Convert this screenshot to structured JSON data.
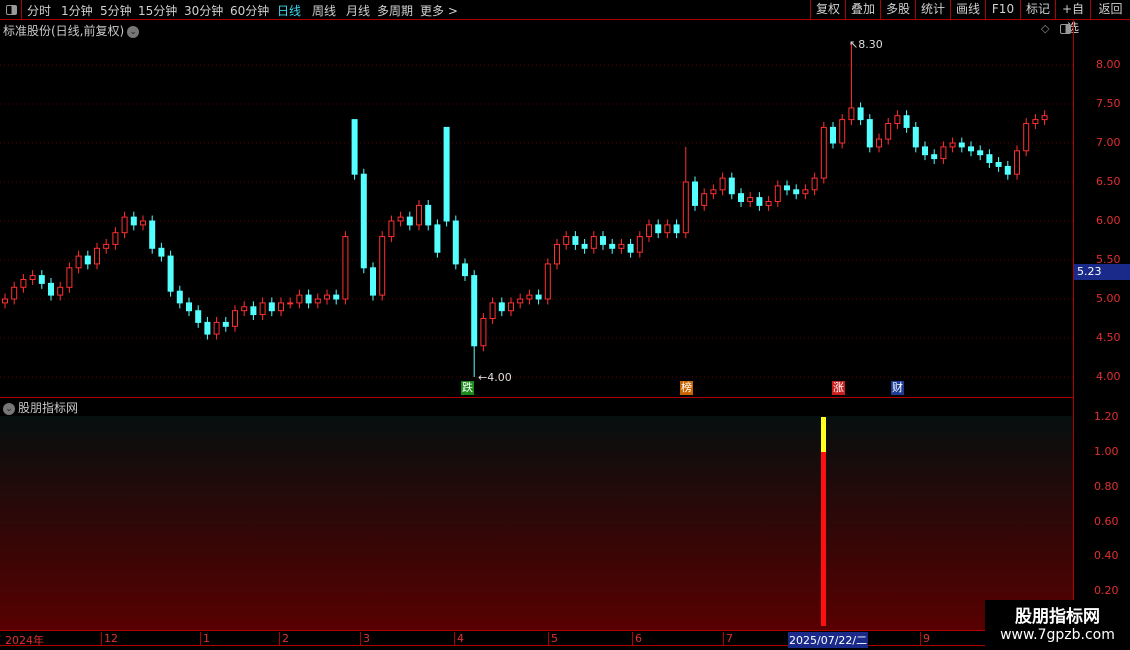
{
  "toolbar": {
    "periods": [
      "分时",
      "1分钟",
      "5分钟",
      "15分钟",
      "30分钟",
      "60分钟",
      "日线",
      "周线",
      "月线",
      "多周期",
      "更多 >"
    ],
    "active": "日线",
    "right_buttons": [
      "复权",
      "叠加",
      "多股",
      "统计",
      "画线",
      "F10",
      "标记",
      "+自选",
      "返回"
    ]
  },
  "main": {
    "title": "标准股份(日线,前复权)",
    "current_price": "5.23",
    "high_label": "8.30",
    "low_label": "4.00",
    "markers": [
      {
        "label": "跌",
        "color": "#1a8a1a"
      },
      {
        "label": "榜",
        "color": "#c86400"
      },
      {
        "label": "涨",
        "color": "#c81e1e"
      },
      {
        "label": "财",
        "color": "#1e3c96"
      }
    ]
  },
  "indicator": {
    "title": "股朋指标网",
    "y_ticks": [
      "1.20",
      "1.00",
      "0.80",
      "0.60",
      "0.40",
      "0.20"
    ],
    "signal": {
      "index": 89,
      "red_value": 1.0,
      "yellow_value": 1.2
    }
  },
  "xaxis": {
    "labels": [
      "2024年",
      "12",
      "1",
      "2",
      "3",
      "4",
      "5",
      "6",
      "7",
      "8",
      "9"
    ],
    "selected": "2025/07/22/二"
  },
  "watermark": {
    "line1": "股朋指标网",
    "line2": "www.7gpzb.com"
  },
  "chart_data": {
    "type": "candlestick",
    "y_ticks": [
      "8.00",
      "7.50",
      "7.00",
      "6.50",
      "6.00",
      "5.50",
      "5.00",
      "4.50",
      "4.00"
    ],
    "ylim": [
      3.9,
      8.55
    ],
    "up_color": "#ff3030",
    "down_color": "#54ffff",
    "closes": [
      5.0,
      5.15,
      5.25,
      5.3,
      5.2,
      5.05,
      5.15,
      5.4,
      5.55,
      5.45,
      5.65,
      5.7,
      5.85,
      6.05,
      5.95,
      6.0,
      5.65,
      5.55,
      5.1,
      4.95,
      4.85,
      4.7,
      4.55,
      4.7,
      4.65,
      4.85,
      4.9,
      4.8,
      4.95,
      4.85,
      4.95,
      4.95,
      5.05,
      4.95,
      5.0,
      5.05,
      5.0,
      5.8,
      6.6,
      5.4,
      5.05,
      5.8,
      6.0,
      6.05,
      5.95,
      6.2,
      5.95,
      5.6,
      6.0,
      5.45,
      5.3,
      4.4,
      4.75,
      4.95,
      4.85,
      4.95,
      5.0,
      5.05,
      5.0,
      5.45,
      5.7,
      5.8,
      5.7,
      5.65,
      5.8,
      5.7,
      5.65,
      5.7,
      5.6,
      5.8,
      5.95,
      5.85,
      5.95,
      5.85,
      6.5,
      6.2,
      6.35,
      6.4,
      6.55,
      6.35,
      6.25,
      6.3,
      6.2,
      6.25,
      6.45,
      6.4,
      6.35,
      6.4,
      6.55,
      7.2,
      7.0,
      7.3,
      7.45,
      7.3,
      6.95,
      7.05,
      7.25,
      7.35,
      7.2,
      6.95,
      6.85,
      6.8,
      6.95,
      7.0,
      6.95,
      6.9,
      6.85,
      6.75,
      6.7,
      6.6,
      6.9,
      7.25,
      7.3,
      7.35
    ],
    "overrides": [
      {
        "i": 38,
        "open": 7.3,
        "high": 7.3
      },
      {
        "i": 48,
        "open": 7.2,
        "high": 7.2
      },
      {
        "i": 51,
        "low": 4.0
      },
      {
        "i": 92,
        "high": 8.3
      },
      {
        "i": 74,
        "high": 6.95
      }
    ]
  }
}
